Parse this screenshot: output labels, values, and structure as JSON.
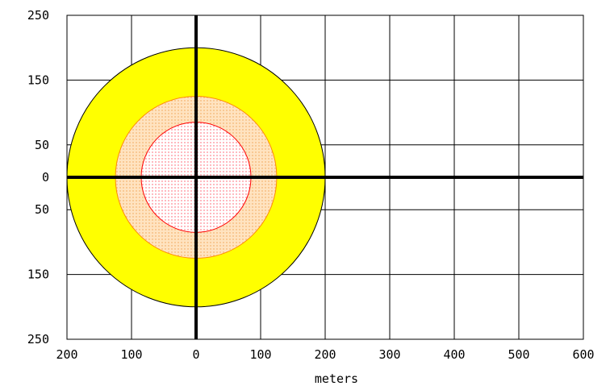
{
  "chart_data": {
    "type": "area",
    "xlabel": "meters",
    "ylabel": "",
    "xlim": [
      -200,
      600
    ],
    "ylim": [
      -250,
      250
    ],
    "x_ticks": [
      -200,
      -100,
      0,
      100,
      200,
      300,
      400,
      500,
      600
    ],
    "x_tick_labels": [
      "200",
      "100",
      "0",
      "100",
      "200",
      "300",
      "400",
      "500",
      "600"
    ],
    "y_ticks": [
      250,
      150,
      50,
      0,
      -50,
      -150,
      -250
    ],
    "y_tick_labels": [
      "250",
      "150",
      "50",
      "0",
      "50",
      "150",
      "250"
    ],
    "grid": true,
    "zones": [
      {
        "radius": 200,
        "fill": "#ffff00",
        "stroke": "#000000",
        "pattern": "solid"
      },
      {
        "radius": 125,
        "fill": "#ffd7a8",
        "stroke": "#ff8c00",
        "pattern": "dotted"
      },
      {
        "radius": 85,
        "fill": "#ffe4ec",
        "stroke": "#ff0000",
        "pattern": "dotted"
      }
    ]
  }
}
